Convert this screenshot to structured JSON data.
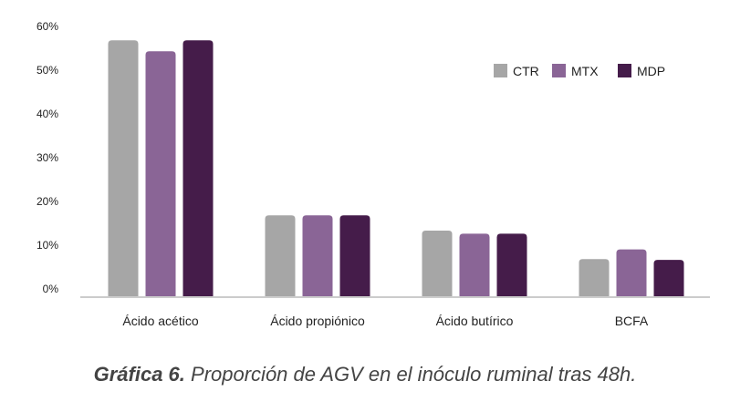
{
  "chart_data": {
    "type": "bar",
    "categories": [
      "Ácido acético",
      "Ácido propiónico",
      "Ácido butírico",
      "BCFA"
    ],
    "series": [
      {
        "name": "CTR",
        "color": "#a6a6a6",
        "values": [
          58.5,
          18.5,
          15,
          8.5
        ]
      },
      {
        "name": "MTX",
        "color": "#8a6596",
        "values": [
          56,
          18.5,
          14.3,
          10.7
        ]
      },
      {
        "name": "MDP",
        "color": "#451c4a",
        "values": [
          58.5,
          18.5,
          14.3,
          8.3
        ]
      }
    ],
    "ylim": [
      0,
      60
    ],
    "yticks": [
      "0%",
      "10%",
      "20%",
      "30%",
      "40%",
      "50%",
      "60%"
    ],
    "legend_position": "top-right",
    "grid": false
  },
  "caption": {
    "label": "Gráfica 6.",
    "text": " Proporción de AGV en el inóculo ruminal tras 48h."
  }
}
